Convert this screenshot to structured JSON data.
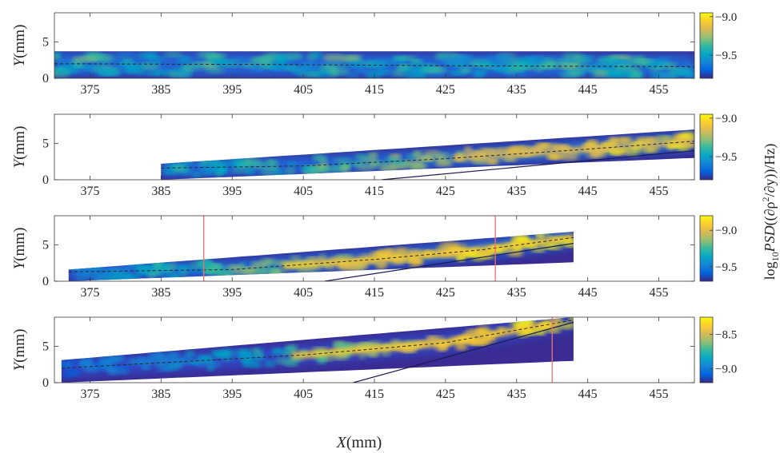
{
  "figure": {
    "xlabel_var": "X",
    "xlabel_unit": "(mm)",
    "ylabel_var": "Y",
    "ylabel_unit": "(mm)",
    "colorbar_label": {
      "prefix": "log",
      "sub": "10",
      "var": "PSD",
      "arg": "((∂ρ",
      "sup": "2",
      "tail": "/∂y))/Hz)"
    },
    "colormap": [
      "#352a87",
      "#0363e1",
      "#1485d4",
      "#06a7c6",
      "#38b99e",
      "#92bf73",
      "#d9ba56",
      "#fcce2e",
      "#f9fb0e"
    ],
    "line_colors": {
      "dashed": "#2a2a2a",
      "solid": "#1a1a50",
      "marker": "#f07070"
    }
  },
  "chart_data": [
    {
      "type": "heatmap",
      "name": "panel-1",
      "xlim": [
        370,
        460
      ],
      "ylim": [
        0,
        9
      ],
      "xticks": [
        375,
        385,
        395,
        405,
        415,
        425,
        435,
        445,
        455
      ],
      "yticks": [
        0,
        5
      ],
      "domain": {
        "x_start": 370,
        "x_end": 460,
        "upper": [
          [
            370,
            3.7
          ],
          [
            460,
            3.7
          ]
        ],
        "lower": [
          [
            370,
            0
          ],
          [
            460,
            0
          ]
        ]
      },
      "dashed_line": [
        [
          370,
          2.0
        ],
        [
          400,
          1.9
        ],
        [
          430,
          1.7
        ],
        [
          460,
          1.6
        ]
      ],
      "solid_line": null,
      "marker_lines": [],
      "colorbar": {
        "ticks": [
          -9.0,
          -9.5
        ],
        "range": [
          -9.8,
          -8.95
        ]
      }
    },
    {
      "type": "heatmap",
      "name": "panel-2",
      "xlim": [
        370,
        460
      ],
      "ylim": [
        0,
        9
      ],
      "xticks": [
        375,
        385,
        395,
        405,
        415,
        425,
        435,
        445,
        455
      ],
      "yticks": [
        0,
        5
      ],
      "domain": {
        "x_start": 385,
        "x_end": 460,
        "upper": [
          [
            385,
            2.2
          ],
          [
            460,
            6.9
          ]
        ],
        "lower": [
          [
            385,
            0
          ],
          [
            460,
            3.0
          ]
        ]
      },
      "dashed_line": [
        [
          385,
          1.6
        ],
        [
          405,
          1.9
        ],
        [
          425,
          2.9
        ],
        [
          445,
          4.2
        ],
        [
          460,
          5.3
        ]
      ],
      "solid_line": [
        [
          416,
          0
        ],
        [
          460,
          4.0
        ]
      ],
      "marker_lines": [],
      "colorbar": {
        "ticks": [
          -9.0,
          -9.5
        ],
        "range": [
          -9.8,
          -8.95
        ]
      }
    },
    {
      "type": "heatmap",
      "name": "panel-3",
      "xlim": [
        370,
        460
      ],
      "ylim": [
        0,
        9
      ],
      "xticks": [
        375,
        385,
        395,
        405,
        415,
        425,
        435,
        445,
        455
      ],
      "yticks": [
        0,
        5
      ],
      "domain": {
        "x_start": 372,
        "x_end": 443,
        "upper": [
          [
            372,
            1.6
          ],
          [
            443,
            6.8
          ]
        ],
        "lower": [
          [
            372,
            0
          ],
          [
            443,
            2.6
          ]
        ]
      },
      "dashed_line": [
        [
          372,
          1.3
        ],
        [
          395,
          1.6
        ],
        [
          415,
          3.0
        ],
        [
          430,
          4.3
        ],
        [
          443,
          6.0
        ]
      ],
      "solid_line": [
        [
          408,
          0
        ],
        [
          443,
          5.2
        ]
      ],
      "marker_lines": [
        391,
        432
      ],
      "colorbar": {
        "ticks": [
          -9.0,
          -9.5
        ],
        "range": [
          -9.7,
          -8.8
        ]
      }
    },
    {
      "type": "heatmap",
      "name": "panel-4",
      "xlim": [
        370,
        460
      ],
      "ylim": [
        0,
        9
      ],
      "xticks": [
        375,
        385,
        395,
        405,
        415,
        425,
        435,
        445,
        455
      ],
      "yticks": [
        0,
        5
      ],
      "domain": {
        "x_start": 371,
        "x_end": 443,
        "upper": [
          [
            371,
            3.1
          ],
          [
            443,
            9.0
          ]
        ],
        "lower": [
          [
            371,
            0
          ],
          [
            443,
            3.0
          ]
        ]
      },
      "dashed_line": [
        [
          371,
          2.0
        ],
        [
          405,
          3.8
        ],
        [
          425,
          5.5
        ],
        [
          443,
          8.6
        ]
      ],
      "solid_line": [
        [
          412,
          0
        ],
        [
          443,
          8.3
        ]
      ],
      "marker_lines": [
        440
      ],
      "colorbar": {
        "ticks": [
          -8.5,
          -9.0
        ],
        "range": [
          -9.2,
          -8.25
        ]
      }
    }
  ]
}
